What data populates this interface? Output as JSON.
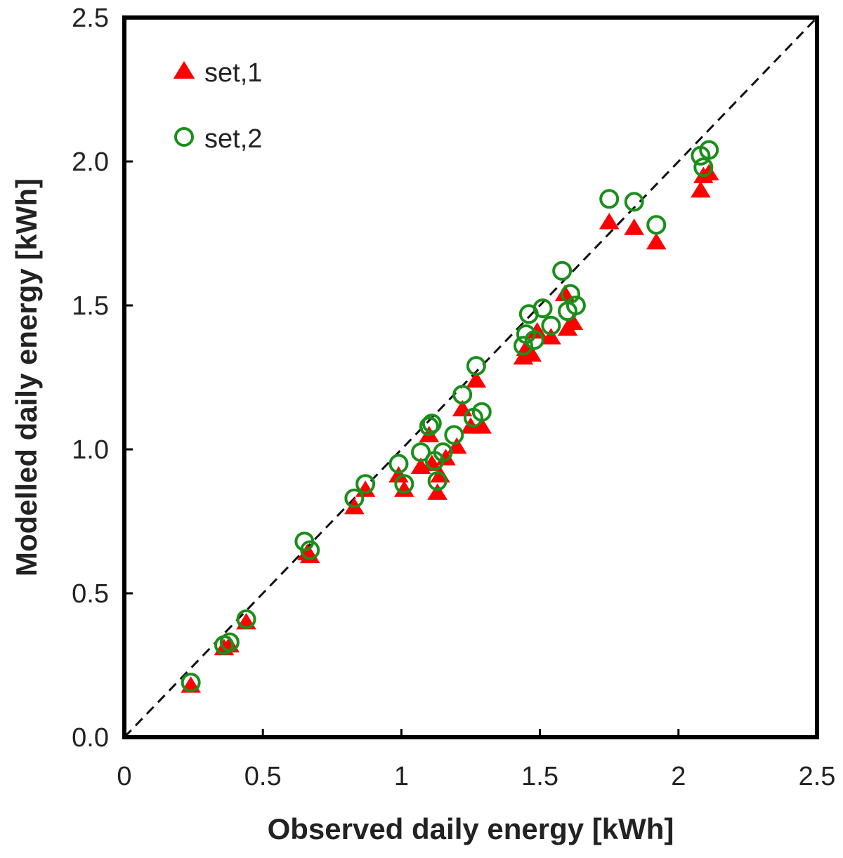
{
  "chart_data": {
    "type": "scatter",
    "title": "",
    "xlabel": "Observed daily energy [kWh]",
    "ylabel": "Modelled daily energy [kWh]",
    "xlim": [
      0,
      2.5
    ],
    "ylim": [
      0,
      2.5
    ],
    "x_ticks": [
      "0",
      "0.5",
      "1",
      "1.5",
      "2",
      "2.5"
    ],
    "y_ticks": [
      "0.0",
      "0.5",
      "1.0",
      "1.5",
      "2.0",
      "2.5"
    ],
    "reference_line": "y = x (dashed)",
    "grid": false,
    "legend_position": "top-left",
    "series": [
      {
        "name": "set,1",
        "marker": "filled-triangle",
        "color": "#ff0000",
        "x": [
          0.24,
          0.36,
          0.38,
          0.44,
          0.66,
          0.67,
          0.83,
          0.87,
          0.99,
          1.01,
          1.07,
          1.1,
          1.11,
          1.13,
          1.14,
          1.16,
          1.2,
          1.22,
          1.25,
          1.27,
          1.29,
          1.44,
          1.45,
          1.47,
          1.49,
          1.54,
          1.59,
          1.6,
          1.62,
          1.75,
          1.84,
          1.92,
          2.08,
          2.09,
          2.11
        ],
        "y": [
          0.18,
          0.31,
          0.32,
          0.4,
          0.64,
          0.63,
          0.8,
          0.86,
          0.91,
          0.86,
          0.94,
          1.05,
          0.95,
          0.85,
          0.91,
          0.97,
          1.01,
          1.14,
          1.08,
          1.24,
          1.08,
          1.32,
          1.35,
          1.33,
          1.41,
          1.39,
          1.54,
          1.42,
          1.44,
          1.79,
          1.77,
          1.72,
          1.9,
          1.95,
          1.96
        ]
      },
      {
        "name": "set,2",
        "marker": "open-circle",
        "color": "#1a8f1a",
        "x": [
          0.24,
          0.36,
          0.38,
          0.44,
          0.65,
          0.67,
          0.83,
          0.87,
          0.99,
          1.01,
          1.07,
          1.1,
          1.11,
          1.12,
          1.13,
          1.15,
          1.19,
          1.22,
          1.26,
          1.27,
          1.29,
          1.44,
          1.45,
          1.46,
          1.48,
          1.51,
          1.54,
          1.58,
          1.6,
          1.61,
          1.63,
          1.75,
          1.84,
          1.92,
          2.08,
          2.09,
          2.11
        ],
        "y": [
          0.19,
          0.32,
          0.33,
          0.41,
          0.68,
          0.65,
          0.83,
          0.88,
          0.95,
          0.88,
          0.99,
          1.08,
          1.09,
          0.96,
          0.89,
          0.99,
          1.05,
          1.19,
          1.11,
          1.29,
          1.13,
          1.36,
          1.4,
          1.47,
          1.38,
          1.49,
          1.43,
          1.62,
          1.48,
          1.54,
          1.5,
          1.87,
          1.86,
          1.78,
          2.02,
          1.98,
          2.04
        ]
      }
    ]
  }
}
